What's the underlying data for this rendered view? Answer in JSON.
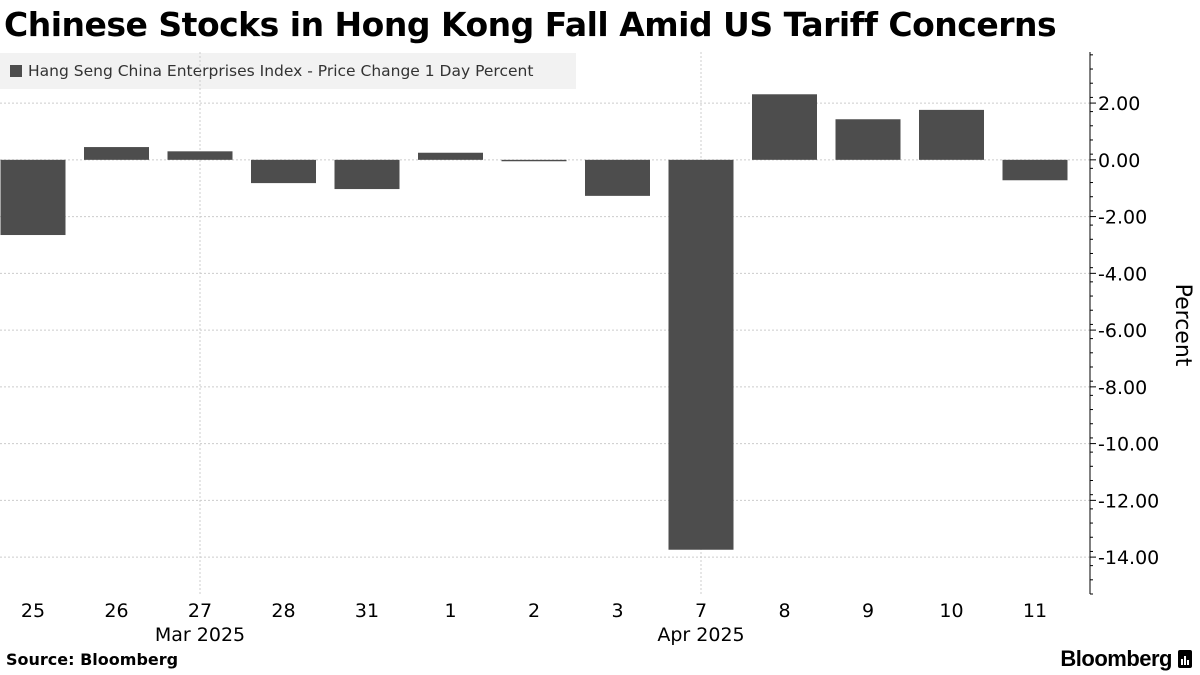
{
  "title": "Chinese Stocks in Hong Kong Fall Amid US Tariff Concerns",
  "footer": {
    "source": "Source: Bloomberg",
    "brand": "Bloomberg"
  },
  "colors": {
    "bar": "#4d4d4d",
    "grid": "#cccccc",
    "legend_bg": "#f2f2f2"
  },
  "chart_data": {
    "type": "bar",
    "title": "Chinese Stocks in Hong Kong Fall Amid US Tariff Concerns",
    "legend": "Hang Seng China Enterprises Index - Price Change 1 Day Percent",
    "ylabel": "Percent",
    "y_axis_position": "right",
    "categories": [
      "25",
      "26",
      "27",
      "28",
      "31",
      "1",
      "2",
      "3",
      "7",
      "8",
      "9",
      "10",
      "11"
    ],
    "month_labels": [
      {
        "label": "Mar 2025",
        "under": "27"
      },
      {
        "label": "Apr 2025",
        "under": "7"
      }
    ],
    "series": [
      {
        "name": "Hang Seng China Enterprises Index - Price Change 1 Day Percent",
        "values": [
          -2.65,
          0.45,
          0.3,
          -0.82,
          -1.03,
          0.25,
          -0.05,
          -1.27,
          -13.74,
          2.31,
          1.43,
          1.76,
          -0.72
        ]
      }
    ],
    "yticks": [
      "2.00",
      "0.00",
      "-2.00",
      "-4.00",
      "-6.00",
      "-8.00",
      "-10.00",
      "-12.00",
      "-14.00"
    ],
    "ylim": [
      -15.3,
      3.8
    ],
    "grid": true
  }
}
